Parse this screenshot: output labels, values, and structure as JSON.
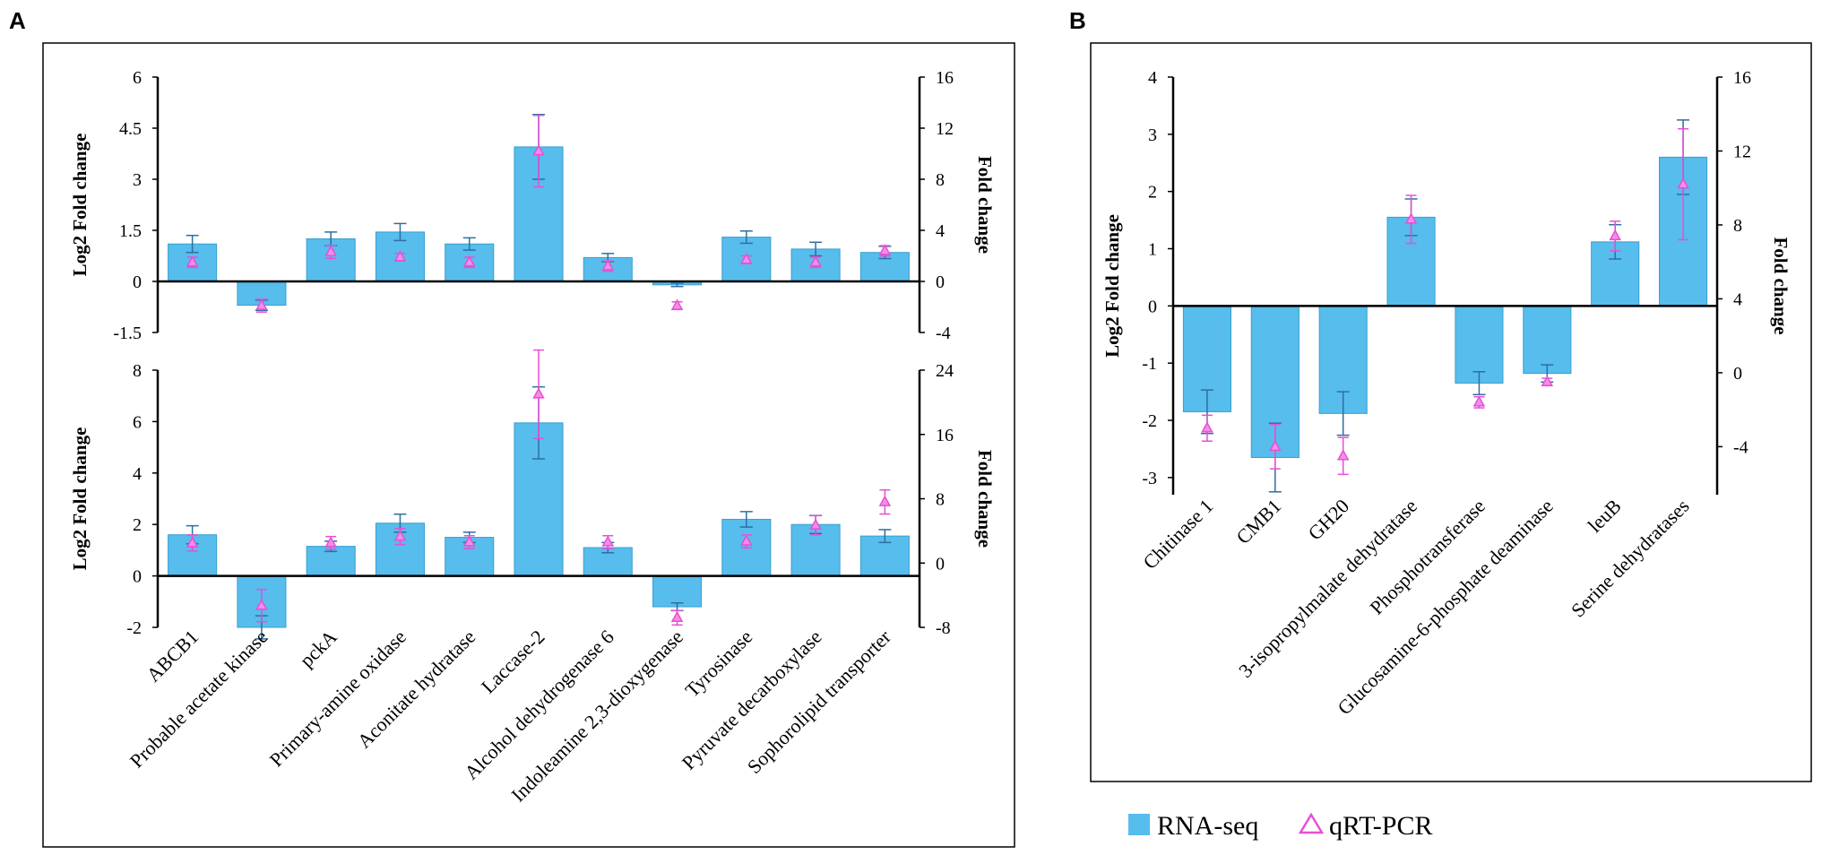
{
  "colors": {
    "bar": "#56bdec",
    "bar_edge": "#3a9fd0",
    "err_rna": "#2e6fa0",
    "qpcr": "#e84fd6",
    "axis": "#000000"
  },
  "legend": {
    "items": [
      {
        "label": "RNA-seq",
        "icon": "bar-swatch-icon"
      },
      {
        "label": "qRT-PCR",
        "icon": "triangle-icon"
      }
    ]
  },
  "chart_data": [
    {
      "panel": "A",
      "subplot": "top",
      "type": "bar",
      "title": "",
      "categories": [
        "ABCB1",
        "Probable acetate kinase",
        "pckA",
        "Primary-amine oxidase",
        "Aconitate hydratase",
        "Laccase-2",
        "Alcohol dehydrogenase 6",
        "Indoleamine 2,3-dioxygenase",
        "Tyrosinase",
        "Pyruvate decarboxylase",
        "Sophorolipid transporter"
      ],
      "ylabel": "Log2 Fold change",
      "ylim": [
        -1.5,
        6
      ],
      "yticks": [
        6,
        4.5,
        3,
        1.5,
        0,
        -1.5
      ],
      "ytick_labels": [
        "6",
        "4.5",
        "3",
        "1.5",
        "0",
        "-1.5"
      ],
      "y2label": "Fold change",
      "y2lim": [
        -4,
        16
      ],
      "y2ticks": [
        16,
        12,
        8,
        4,
        0,
        -4
      ],
      "series": [
        {
          "name": "RNA-seq",
          "kind": "bar",
          "axis": "left",
          "values": [
            1.1,
            -0.7,
            1.25,
            1.45,
            1.1,
            3.95,
            0.7,
            -0.1,
            1.3,
            0.95,
            0.85
          ],
          "errors": [
            0.25,
            0.15,
            0.2,
            0.25,
            0.18,
            0.95,
            0.12,
            0.05,
            0.18,
            0.2,
            0.18
          ]
        },
        {
          "name": "qRT-PCR",
          "kind": "triangle",
          "axis": "right",
          "values": [
            1.5,
            -1.9,
            2.3,
            1.9,
            1.5,
            10.2,
            1.2,
            -1.9,
            1.7,
            1.5,
            2.4
          ],
          "errors": [
            0.4,
            0.5,
            0.5,
            0.3,
            0.4,
            2.8,
            0.4,
            0.3,
            0.3,
            0.4,
            0.4
          ]
        }
      ]
    },
    {
      "panel": "A",
      "subplot": "bottom",
      "type": "bar",
      "title": "",
      "categories": [
        "ABCB1",
        "Probable acetate kinase",
        "pckA",
        "Primary-amine oxidase",
        "Aconitate hydratase",
        "Laccase-2",
        "Alcohol dehydrogenase 6",
        "Indoleamine 2,3-dioxygenase",
        "Tyrosinase",
        "Pyruvate decarboxylase",
        "Sophorolipid transporter"
      ],
      "ylabel": "Log2 Fold change",
      "ylim": [
        -2,
        8
      ],
      "yticks": [
        8,
        6,
        4,
        2,
        0,
        -2
      ],
      "ytick_labels": [
        "8",
        "6",
        "4",
        "2",
        "0",
        "-2"
      ],
      "y2label": "Fold change",
      "y2lim": [
        -8,
        24
      ],
      "y2ticks": [
        24,
        16,
        8,
        0,
        -8
      ],
      "series": [
        {
          "name": "RNA-seq",
          "kind": "bar",
          "axis": "left",
          "values": [
            1.6,
            -2.0,
            1.15,
            2.05,
            1.5,
            5.95,
            1.1,
            -1.2,
            2.2,
            2.0,
            1.55
          ],
          "errors": [
            0.35,
            0.45,
            0.2,
            0.35,
            0.2,
            1.4,
            0.2,
            0.15,
            0.3,
            0.35,
            0.25
          ]
        },
        {
          "name": "qRT-PCR",
          "kind": "triangle",
          "axis": "right",
          "values": [
            2.5,
            -5.3,
            2.5,
            3.3,
            2.6,
            21.0,
            2.6,
            -6.8,
            2.7,
            4.7,
            7.6
          ],
          "errors": [
            1.0,
            2.0,
            0.8,
            1.0,
            0.8,
            5.5,
            0.8,
            0.9,
            0.8,
            1.2,
            1.5
          ]
        }
      ]
    },
    {
      "panel": "B",
      "subplot": "main",
      "type": "bar",
      "title": "",
      "categories": [
        "Chitinase 1",
        "CMB1",
        "GH20",
        "3-isopropylmalate dehydratase",
        "Phosphotransferase",
        "Glucosamine-6-phosphate deaminase",
        "leuB",
        "Serine dehydratases"
      ],
      "ylabel": "Log2 Fold change",
      "ylim": [
        -3.3,
        4
      ],
      "yticks": [
        4,
        3,
        2,
        1,
        0,
        -1,
        -2,
        -3
      ],
      "ytick_labels": [
        "4",
        "3",
        "2",
        "1",
        "0",
        "-1",
        "-2",
        "-3"
      ],
      "y2label": "Fold change",
      "y2lim": [
        -6.6,
        16
      ],
      "y2ticks": [
        16,
        12,
        8,
        4,
        0,
        -4
      ],
      "series": [
        {
          "name": "RNA-seq",
          "kind": "bar",
          "axis": "left",
          "values": [
            -1.85,
            -2.65,
            -1.88,
            1.55,
            -1.35,
            -1.18,
            1.12,
            2.6
          ],
          "errors": [
            0.38,
            0.6,
            0.38,
            0.32,
            0.2,
            0.15,
            0.3,
            0.65
          ]
        },
        {
          "name": "qRT-PCR",
          "kind": "triangle",
          "axis": "right",
          "values": [
            -3.0,
            -4.0,
            -4.5,
            8.3,
            -1.6,
            -0.5,
            7.4,
            10.2
          ],
          "errors": [
            0.7,
            1.2,
            1.0,
            1.3,
            0.3,
            0.2,
            0.8,
            3.0
          ]
        }
      ]
    }
  ]
}
